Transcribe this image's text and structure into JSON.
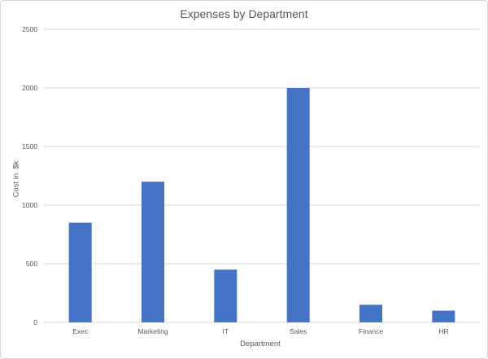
{
  "chart_data": {
    "type": "bar",
    "title": "Expenses by Department",
    "xlabel": "Department",
    "ylabel": "Cost in  $k",
    "categories": [
      "Exec",
      "Marketing",
      "IT",
      "Sales",
      "Finance",
      "HR"
    ],
    "values": [
      850,
      1200,
      450,
      2000,
      150,
      100
    ],
    "ylim": [
      0,
      2500
    ],
    "yticks": [
      "0",
      "500",
      "1000",
      "1500",
      "2000",
      "2500"
    ],
    "ytick_values": [
      0,
      500,
      1000,
      1500,
      2000,
      2500
    ],
    "grid": true,
    "legend": "none",
    "bar_color": "#4472c4",
    "grid_color": "#d9d9d9"
  }
}
